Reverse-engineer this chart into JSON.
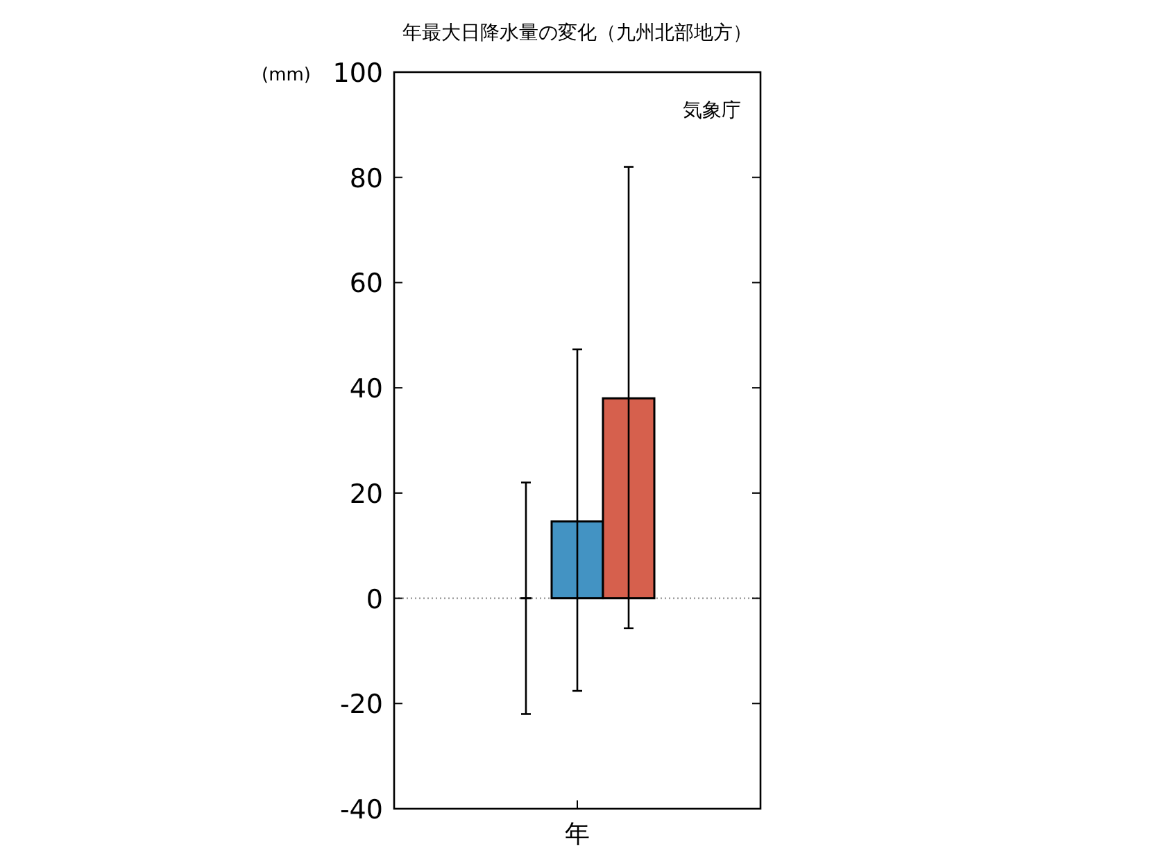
{
  "chart_data": {
    "type": "bar",
    "title": "年最大日降水量の変化（九州北部地方）",
    "ylabel": "(mm)",
    "categories": [
      "年"
    ],
    "series": [
      {
        "color": "#000000",
        "values": [
          0
        ],
        "errors": [
          [
            -22,
            22
          ]
        ]
      },
      {
        "color": "#4393c3",
        "values": [
          14.6
        ],
        "errors": [
          [
            -17.6,
            47.3
          ]
        ]
      },
      {
        "color": "#d6604d",
        "values": [
          38
        ],
        "errors": [
          [
            -5.7,
            82
          ]
        ]
      }
    ],
    "ylim": [
      -40,
      100
    ],
    "yticks": [
      -40,
      -20,
      0,
      20,
      40,
      60,
      80,
      100
    ],
    "grid": false,
    "ref_lines": [
      {
        "axis": "y",
        "value": 0,
        "color": "#888888",
        "line_style": "dotted"
      }
    ],
    "annotations": [
      "気象庁"
    ]
  }
}
